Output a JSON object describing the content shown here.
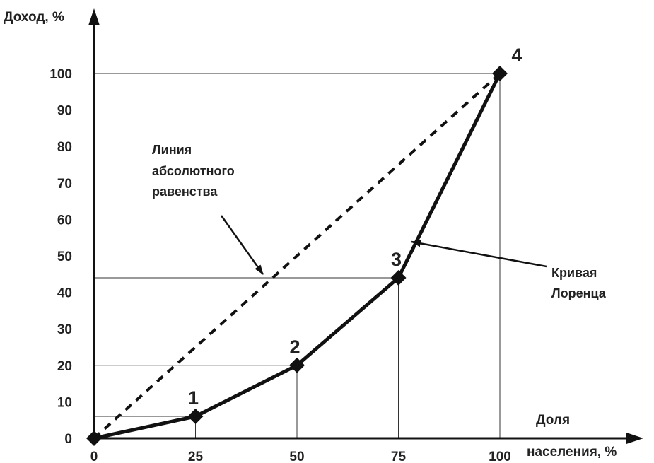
{
  "chart_data": {
    "type": "line",
    "ylabel": "Доход, %",
    "xlabel": [
      "Доля",
      "населения, %"
    ],
    "xlim": [
      0,
      100
    ],
    "ylim": [
      0,
      100
    ],
    "x_ticks": [
      0,
      25,
      50,
      75,
      100
    ],
    "y_ticks": [
      0,
      10,
      20,
      30,
      40,
      50,
      60,
      70,
      80,
      90,
      100
    ],
    "series": [
      {
        "style": "dashed",
        "points": [
          [
            0,
            0
          ],
          [
            100,
            100
          ]
        ]
      },
      {
        "style": "solid",
        "points": [
          [
            0,
            0
          ],
          [
            25,
            6
          ],
          [
            50,
            20
          ],
          [
            75,
            44
          ],
          [
            100,
            100
          ]
        ],
        "point_labels": [
          "",
          "1",
          "2",
          "3",
          "4"
        ]
      }
    ],
    "annotations": [
      {
        "lines": [
          "Линия",
          "абсолютного",
          "равенства"
        ]
      },
      {
        "lines": [
          "Кривая",
          "Лоренца"
        ]
      }
    ]
  }
}
